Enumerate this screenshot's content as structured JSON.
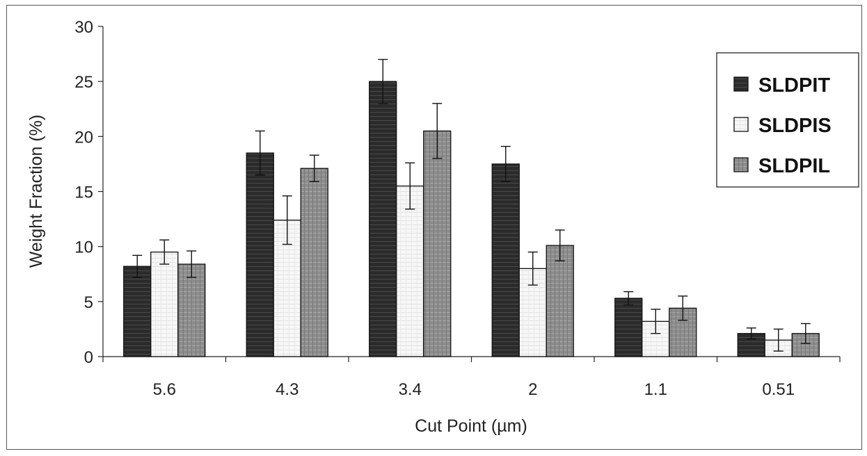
{
  "chart_data": {
    "type": "bar",
    "title": "",
    "xlabel": "Cut Point (µm)",
    "ylabel": "Weight Fraction (%)",
    "ylim": [
      0,
      30
    ],
    "yticks": [
      "0",
      "5",
      "10",
      "15",
      "20",
      "25",
      "30"
    ],
    "categories": [
      "5.6",
      "4.3",
      "3.4",
      "2",
      "1.1",
      "0.51"
    ],
    "grid": false,
    "legend_position": "top-right",
    "series": [
      {
        "name": "SLDPIT",
        "fill": "#2b2b2b",
        "values": [
          8.2,
          18.5,
          25.0,
          17.5,
          5.3,
          2.1
        ],
        "error": [
          1.0,
          2.0,
          2.0,
          1.6,
          0.6,
          0.5
        ]
      },
      {
        "name": "SLDPIS",
        "fill": "#f4f4f4",
        "values": [
          9.5,
          12.4,
          15.5,
          8.0,
          3.2,
          1.5
        ],
        "error": [
          1.1,
          2.2,
          2.1,
          1.5,
          1.1,
          1.0
        ]
      },
      {
        "name": "SLDPIL",
        "fill": "#8f8f8f",
        "values": [
          8.4,
          17.1,
          20.5,
          10.1,
          4.4,
          2.1
        ],
        "error": [
          1.2,
          1.2,
          2.5,
          1.4,
          1.1,
          0.9
        ]
      }
    ]
  }
}
